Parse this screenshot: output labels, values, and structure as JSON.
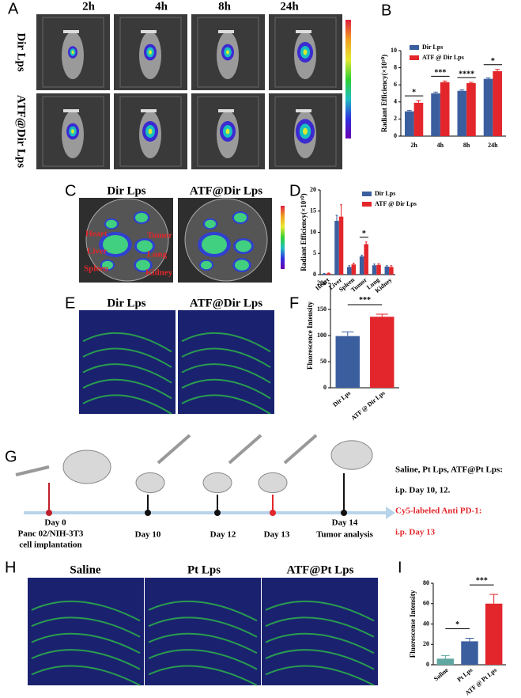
{
  "panel_labels": [
    "A",
    "B",
    "C",
    "D",
    "E",
    "F",
    "G",
    "H",
    "I"
  ],
  "panel_a": {
    "time_points": [
      "2h",
      "4h",
      "8h",
      "24h"
    ],
    "rows": [
      "Dir Lps",
      "ATF@Dir Lps"
    ]
  },
  "panel_c": {
    "columns": [
      "Dir Lps",
      "ATF@Dir Lps"
    ],
    "organs": [
      "Heart",
      "Liver",
      "Spleen",
      "Tumor",
      "Lung",
      "Kidney"
    ]
  },
  "panel_e": {
    "columns": [
      "Dir Lps",
      "ATF@Dir Lps"
    ]
  },
  "panel_g": {
    "events": [
      {
        "day": "Day 0",
        "note": [
          "Panc 02/NIH-3T3",
          "cell implantation"
        ]
      },
      {
        "day": "Day 10"
      },
      {
        "day": "Day 12"
      },
      {
        "day": "Day 13"
      },
      {
        "day": "Day 14",
        "note": [
          "Tumor analysis"
        ]
      }
    ],
    "legend": [
      "Saline, Pt Lps, ATF@Pt Lps:",
      "i.p. Day 10, 12.",
      "Cy5-labeled Anti PD-1:",
      "i.p. Day 13"
    ]
  },
  "panel_h": {
    "columns": [
      "Saline",
      "Pt  Lps",
      "ATF@Pt Lps"
    ]
  },
  "chart_data": [
    {
      "type": "bar",
      "ylabel": "Radiant Efficiency(×10¹⁰)",
      "categories": [
        "2h",
        "4h",
        "8h",
        "24h"
      ],
      "series": [
        {
          "name": "Dir Lps",
          "color": "#3b5f9e",
          "values": [
            2.9,
            5.0,
            5.3,
            6.7
          ],
          "errors": [
            0.1,
            0.15,
            0.1,
            0.1
          ]
        },
        {
          "name": "ATF @ Dir Lps",
          "color": "#e3262b",
          "values": [
            3.9,
            6.3,
            6.2,
            7.6
          ],
          "errors": [
            0.25,
            0.15,
            0.1,
            0.2
          ]
        }
      ],
      "ylim": [
        0,
        10
      ],
      "yticks": [
        0,
        2,
        4,
        6,
        8,
        10
      ],
      "annotations": [
        "*",
        "***",
        "****",
        "*"
      ]
    },
    {
      "type": "bar",
      "ylabel": "Radiant Efficiency(×10¹⁰)",
      "categories": [
        "Heart",
        "Liver",
        "Spleen",
        "Tumor",
        "Lung",
        "Kidney"
      ],
      "series": [
        {
          "name": "Dir Lps",
          "color": "#3b5f9e",
          "values": [
            0.2,
            12.7,
            1.8,
            4.3,
            2.2,
            1.9
          ],
          "errors": [
            0.1,
            1.3,
            0.3,
            0.3,
            0.3,
            0.2
          ]
        },
        {
          "name": "ATF @ Dir Lps",
          "color": "#e3262b",
          "values": [
            0.3,
            13.7,
            2.4,
            7.2,
            2.3,
            1.8
          ],
          "errors": [
            0.1,
            2.8,
            0.3,
            0.5,
            0.3,
            0.3
          ]
        }
      ],
      "ylim": [
        0,
        20
      ],
      "yticks": [
        0,
        5,
        10,
        15,
        20
      ],
      "annotations": [
        null,
        null,
        null,
        "*",
        null,
        null
      ]
    },
    {
      "type": "bar",
      "ylabel": "Fluorescence Intensity",
      "categories": [
        "Dir Lps",
        "ATF @ Dir Lps"
      ],
      "series": [
        {
          "colors": [
            "#3b5f9e",
            "#e3262b"
          ],
          "values": [
            99,
            136
          ],
          "errors": [
            8,
            5
          ]
        }
      ],
      "ylim": [
        0,
        200
      ],
      "yticks": [
        0,
        50,
        100,
        150,
        200
      ],
      "comparisons": [
        "***"
      ]
    },
    {
      "type": "bar",
      "ylabel": "Fluorescense Intensity",
      "categories": [
        "Saline",
        "Pt Lps",
        "ATF @ Pt Lps"
      ],
      "series": [
        {
          "colors": [
            "#5fa7a0",
            "#3b5f9e",
            "#e3262b"
          ],
          "values": [
            6,
            23,
            60
          ],
          "errors": [
            3,
            3,
            9
          ]
        }
      ],
      "ylim": [
        0,
        80
      ],
      "yticks": [
        0,
        20,
        40,
        60,
        80
      ],
      "comparisons": [
        "*",
        "***"
      ]
    }
  ]
}
